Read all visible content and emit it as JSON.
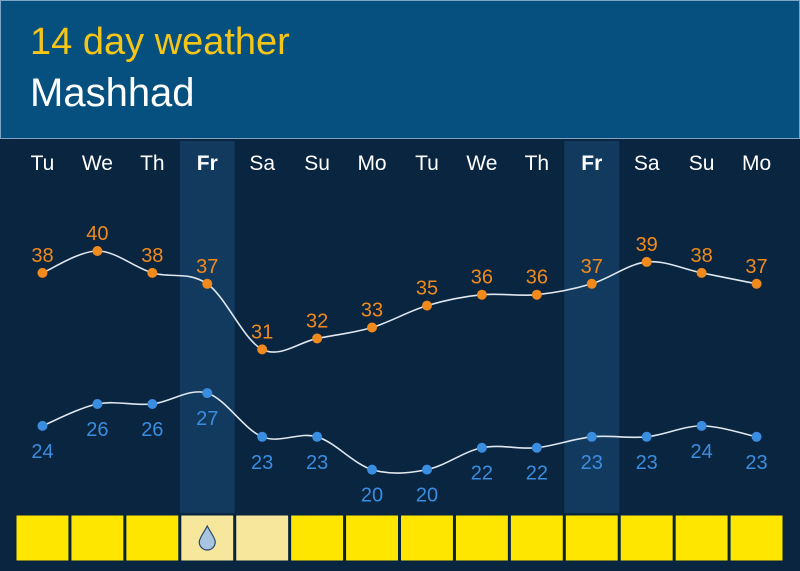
{
  "header": {
    "title": "14 day weather",
    "city": "Mashhad"
  },
  "colors": {
    "header_bg": "#05507f",
    "chart_bg": "#0a2540",
    "friday_column": "#123a5e",
    "title": "#f5c518",
    "high_series": "#f08a1c",
    "low_series": "#3b8de0",
    "line": "#dfe7ef",
    "day_cell": "#ffe600",
    "rain_cell": "#f6e79c"
  },
  "chart_data": {
    "type": "line",
    "categories": [
      "Tu",
      "We",
      "Th",
      "Fr",
      "Sa",
      "Su",
      "Mo",
      "Tu",
      "We",
      "Th",
      "Fr",
      "Sa",
      "Su",
      "Mo"
    ],
    "bold_days": [
      3,
      10
    ],
    "highlighted_columns": [
      3,
      10
    ],
    "series": [
      {
        "values": [
          38,
          40,
          38,
          37,
          31,
          32,
          33,
          35,
          36,
          36,
          37,
          39,
          38,
          37
        ]
      },
      {
        "values": [
          24,
          26,
          26,
          27,
          23,
          23,
          20,
          20,
          22,
          22,
          23,
          23,
          24,
          23
        ]
      }
    ],
    "weather_row": [
      "sun",
      "sun",
      "sun",
      "rain-icon",
      "light",
      "sun",
      "sun",
      "sun",
      "sun",
      "sun",
      "sun",
      "sun",
      "sun",
      "sun"
    ],
    "ylim": [
      15,
      45
    ],
    "grid": false,
    "legend": "none"
  }
}
